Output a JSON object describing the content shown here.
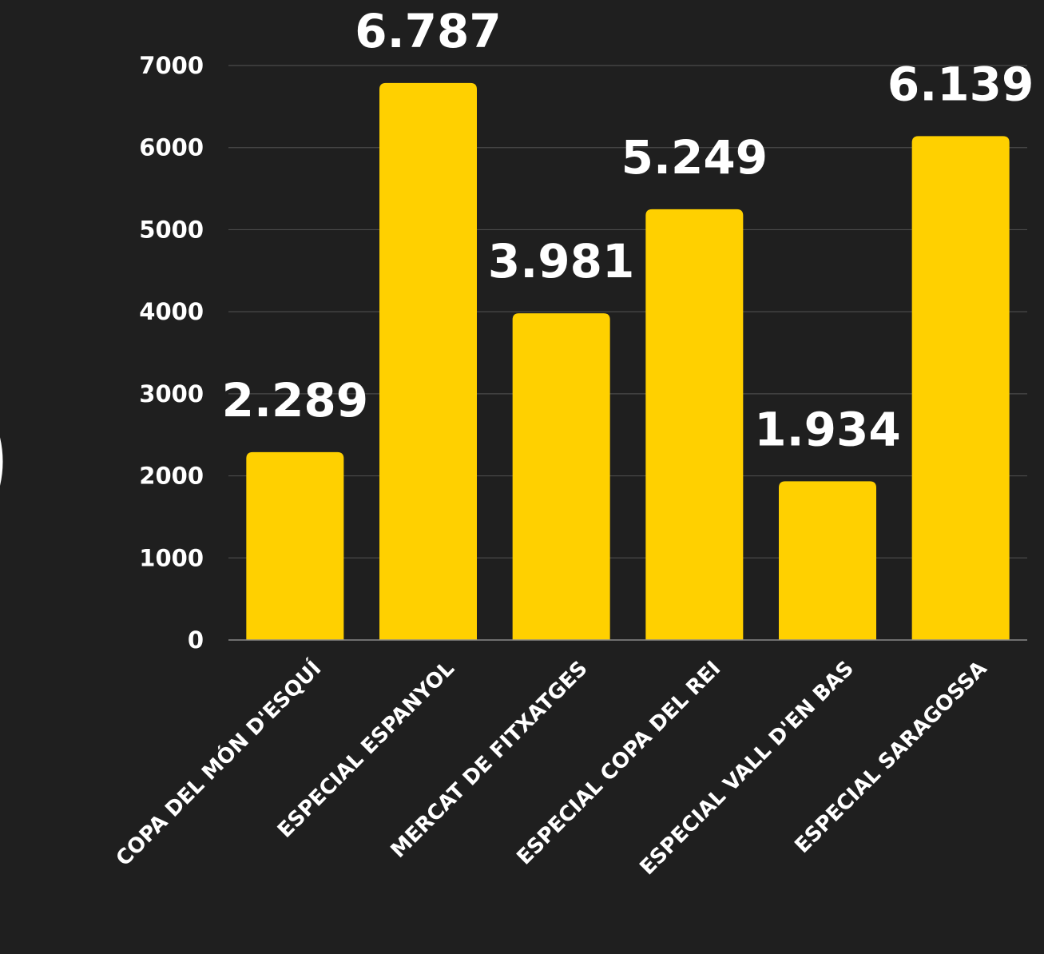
{
  "chart_data": {
    "type": "bar",
    "title": "",
    "xlabel": "",
    "ylabel": "",
    "categories": [
      "COPA DEL MÓN D'ESQUÍ",
      "ESPECIAL ESPANYOL",
      "MERCAT DE FITXATGES",
      "ESPECIAL COPA DEL REI",
      "ESPECIAL VALL D'EN BAS",
      "ESPECIAL SARAGOSSA"
    ],
    "values": [
      2289,
      6787,
      3981,
      5249,
      1934,
      6139
    ],
    "data_labels": [
      "2.289",
      "6.787",
      "3.981",
      "5.249",
      "1.934",
      "6.139"
    ],
    "ylim": [
      0,
      7000
    ],
    "yticks": [
      0,
      1000,
      2000,
      3000,
      4000,
      5000,
      6000,
      7000
    ],
    "ytick_labels": [
      "0",
      "1000",
      "2000",
      "3000",
      "4000",
      "5000",
      "6000",
      "7000"
    ],
    "grid": true,
    "colors": {
      "background": "#1f1f1f",
      "bar": "#ffd000",
      "text": "#ffffff",
      "grid": "#4a4a4a"
    }
  }
}
